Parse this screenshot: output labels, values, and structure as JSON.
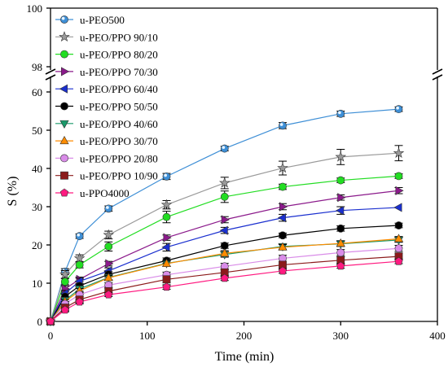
{
  "chart_data": {
    "type": "line",
    "xlabel": "Time (min)",
    "ylabel": "S (%)",
    "xlim": [
      0,
      400
    ],
    "x_ticks": [
      "0",
      "100",
      "200",
      "300",
      "400"
    ],
    "ylim_lower": [
      0,
      60
    ],
    "ylim_upper": [
      98,
      100
    ],
    "y_ticks_lower": [
      "0",
      "10",
      "20",
      "30",
      "40",
      "50",
      "60"
    ],
    "y_ticks_upper": [
      "98",
      "100"
    ],
    "axis_break": true,
    "grid": false,
    "legend_position": "top-left",
    "x": [
      0,
      15,
      30,
      60,
      120,
      180,
      240,
      300,
      360
    ],
    "series": [
      {
        "name": "u-PEO500",
        "color": "#3e8fd6",
        "marker": "sphere",
        "values": [
          0,
          13.0,
          22.3,
          29.5,
          37.9,
          45.2,
          51.2,
          54.3,
          55.5
        ],
        "errors": [
          0,
          0.8,
          0.6,
          0.7,
          0.8,
          0.6,
          0.8,
          0.7,
          0.6
        ]
      },
      {
        "name": "u-PEO/PPO 90/10",
        "color": "#9a9a9a",
        "marker": "star",
        "values": [
          0,
          12.3,
          16.5,
          22.6,
          30.5,
          36.2,
          40.1,
          43.0,
          44.0
        ],
        "errors": [
          0,
          1.0,
          0.9,
          1.0,
          1.1,
          1.5,
          1.8,
          2.0,
          2.0
        ]
      },
      {
        "name": "u-PEO/PPO 80/20",
        "color": "#22dd22",
        "marker": "circle",
        "values": [
          0,
          10.4,
          14.8,
          19.6,
          27.3,
          32.6,
          35.2,
          36.9,
          38.0
        ],
        "errors": [
          0,
          0.8,
          0.8,
          1.2,
          1.5,
          1.5,
          0.7,
          0.6,
          0.6
        ]
      },
      {
        "name": "u-PEO/PPO 70/30",
        "color": "#8b1a8b",
        "marker": "triangle-right",
        "values": [
          0,
          8.5,
          11.0,
          15.1,
          21.9,
          26.6,
          30.0,
          32.4,
          34.2
        ],
        "errors": [
          0,
          0.8,
          0.6,
          0.6,
          0.7,
          0.8,
          0.8,
          0.7,
          0.8
        ]
      },
      {
        "name": "u-PEO/PPO 60/40",
        "color": "#1a2fcf",
        "marker": "triangle-left",
        "values": [
          0,
          7.3,
          10.5,
          13.2,
          19.4,
          23.8,
          27.1,
          29.0,
          29.8
        ],
        "errors": [
          0,
          0.8,
          0.8,
          0.8,
          1.0,
          0.8,
          0.9,
          1.0,
          0
        ]
      },
      {
        "name": "u-PEO/PPO 50/50",
        "color": "#000000",
        "marker": "circle",
        "values": [
          0,
          6.5,
          9.3,
          12.3,
          15.9,
          19.8,
          22.5,
          24.3,
          25.1
        ],
        "errors": [
          0,
          0.6,
          0.6,
          0.7,
          0.7,
          0.7,
          0.6,
          0.7,
          0.6
        ]
      },
      {
        "name": "u-PEO/PPO 40/60",
        "color": "#1a9a6a",
        "marker": "triangle-down",
        "values": [
          0,
          5.5,
          8.5,
          11.5,
          15.2,
          17.5,
          19.6,
          20.3,
          21.3
        ],
        "errors": [
          0,
          0.6,
          0.6,
          0.6,
          0.8,
          0.7,
          0.7,
          0.7,
          0.6
        ]
      },
      {
        "name": "u-PEO/PPO 30/70",
        "color": "#ff8c00",
        "marker": "triangle-up",
        "values": [
          0,
          5.2,
          8.0,
          11.4,
          15.1,
          17.8,
          19.4,
          20.4,
          21.6
        ],
        "errors": [
          0,
          0.5,
          0.6,
          0.6,
          0.7,
          0.7,
          0.7,
          0.7,
          0.6
        ]
      },
      {
        "name": "u-PEO/PPO 20/80",
        "color": "#d98ce8",
        "marker": "circle",
        "values": [
          0,
          4.6,
          7.0,
          9.5,
          12.2,
          14.4,
          16.5,
          18.0,
          19.1
        ],
        "errors": [
          0,
          0.6,
          0.6,
          0.6,
          0.7,
          0.8,
          0.8,
          0.8,
          0.8
        ]
      },
      {
        "name": "u-PEO/PPO 10/90",
        "color": "#8b1a1a",
        "marker": "square",
        "values": [
          0,
          3.6,
          5.7,
          7.9,
          11.0,
          12.8,
          14.8,
          16.0,
          17.0
        ],
        "errors": [
          0,
          0.8,
          0.8,
          0.8,
          0.9,
          0.9,
          0.9,
          0.9,
          0.8
        ]
      },
      {
        "name": "u-PPO4000",
        "color": "#ff1a80",
        "marker": "pentagon",
        "values": [
          0,
          3.0,
          5.1,
          7.0,
          9.0,
          11.3,
          13.2,
          14.5,
          15.7
        ],
        "errors": [
          0,
          0.5,
          0.5,
          0.5,
          0.6,
          0.6,
          0.6,
          0.6,
          0.6
        ]
      }
    ]
  }
}
